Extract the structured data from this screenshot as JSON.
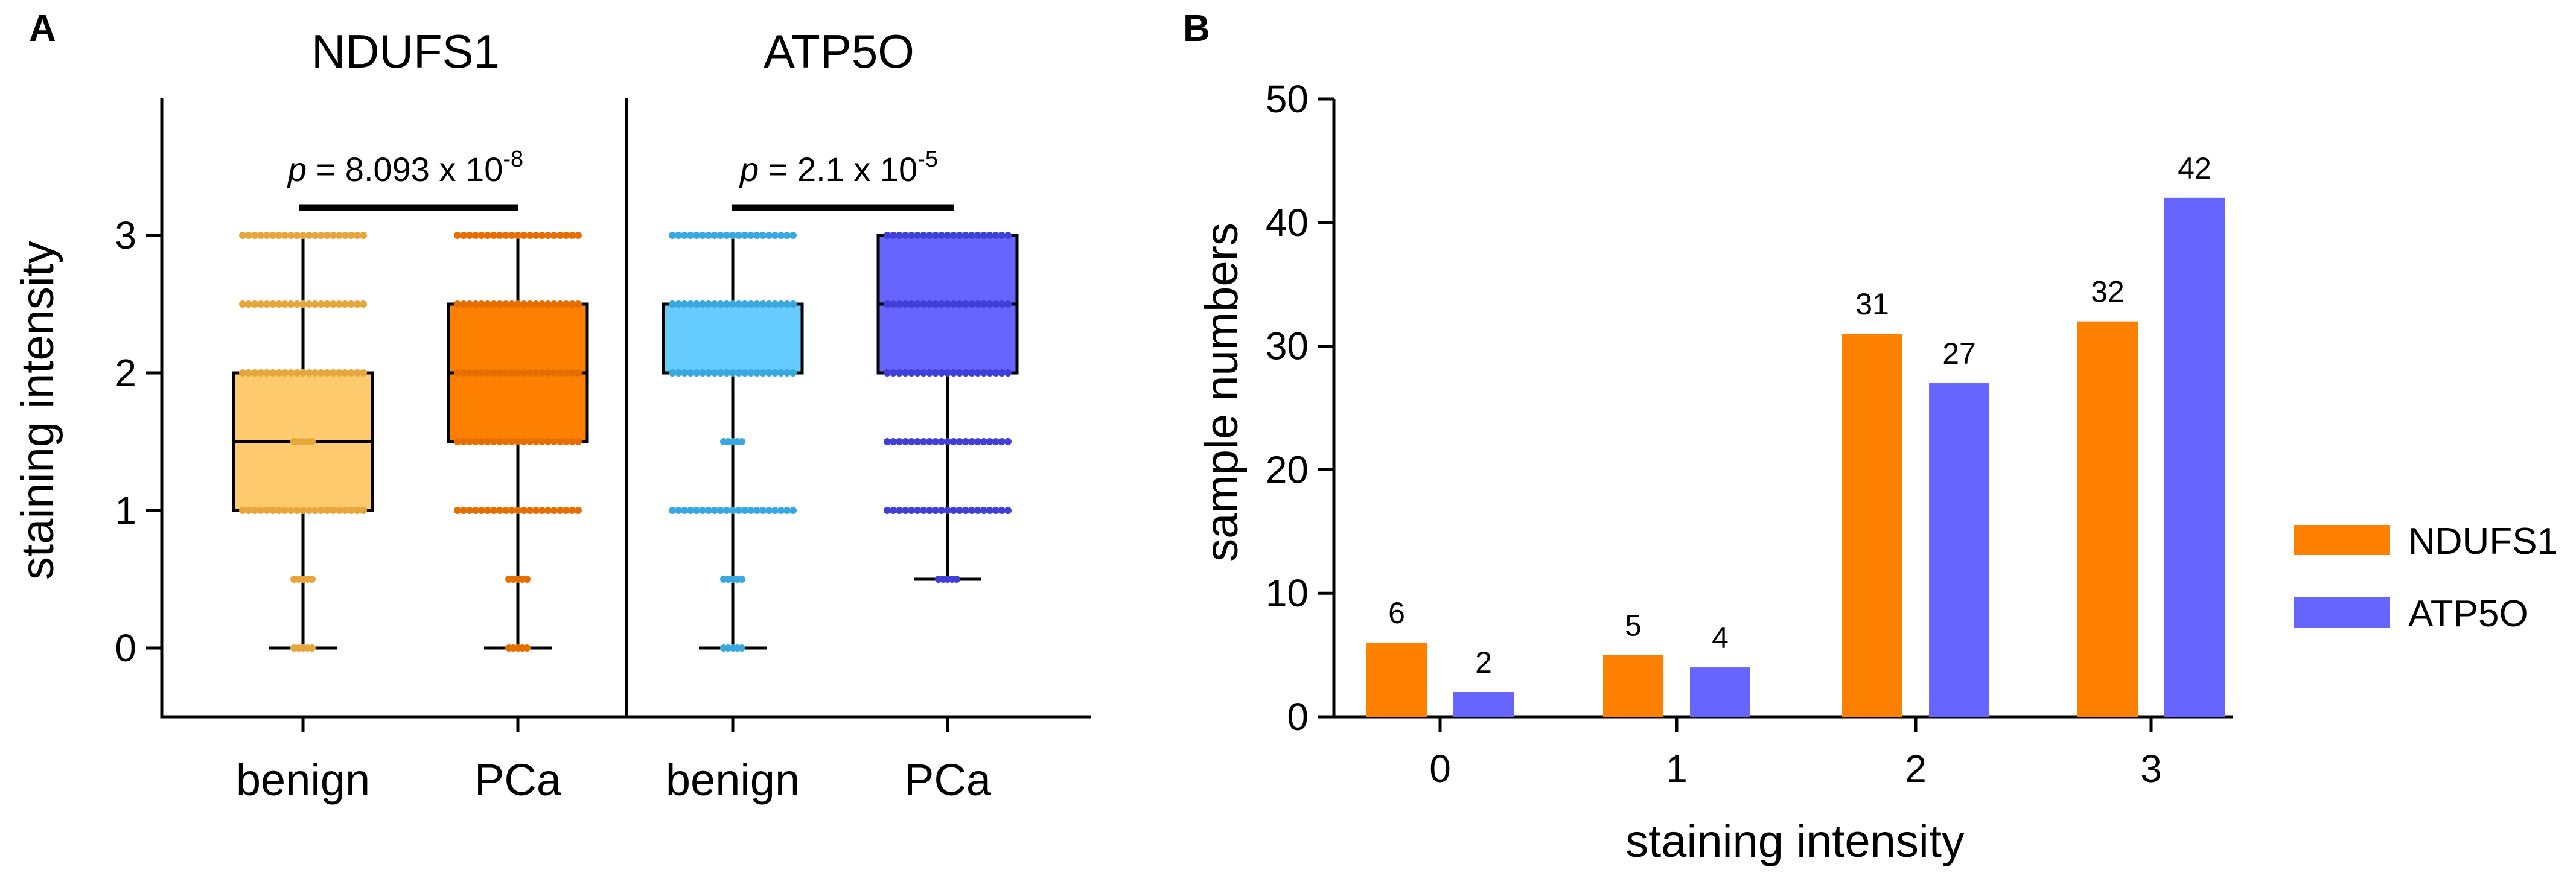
{
  "chart_data": [
    {
      "panel": "A",
      "type": "box",
      "ylabel": "staining intensity",
      "ylim": [
        -0.5,
        4
      ],
      "yticks": [
        0,
        1,
        2,
        3
      ],
      "groups": [
        {
          "title": "NDUFS1",
          "pvalue_prefix": "p",
          "pvalue_text": " = 8.093 x 10",
          "pvalue_exp": "-8",
          "boxes": [
            {
              "category": "benign",
              "color": "#fdcb6e",
              "dot_color": "#e7a63c",
              "min": 0,
              "q1": 1,
              "median": 1.5,
              "q3": 2,
              "max": 3,
              "dot_levels": [
                0,
                0.5,
                1,
                1.5,
                2,
                2.5,
                3
              ]
            },
            {
              "category": "PCa",
              "color": "#fe8000",
              "dot_color": "#e46f00",
              "min": 0,
              "q1": 1.5,
              "median": 2,
              "q3": 2.5,
              "max": 3,
              "dot_levels": [
                0,
                0.5,
                1,
                1.5,
                2,
                2.5,
                3
              ]
            }
          ]
        },
        {
          "title": "ATP5O",
          "pvalue_prefix": "p",
          "pvalue_text": " = 2.1 x 10",
          "pvalue_exp": "-5",
          "boxes": [
            {
              "category": "benign",
              "color": "#66ccff",
              "dot_color": "#3aa8e0",
              "min": 0,
              "q1": 2,
              "median": 2,
              "q3": 2.5,
              "max": 3,
              "dot_levels": [
                0,
                0.5,
                1,
                1.5,
                2,
                2.5,
                3
              ]
            },
            {
              "category": "PCa",
              "color": "#6666ff",
              "dot_color": "#4040d8",
              "min": 0.5,
              "q1": 2,
              "median": 2.5,
              "q3": 3,
              "max": 3,
              "dot_levels": [
                0.5,
                1,
                1.5,
                2,
                2.5,
                3
              ]
            }
          ]
        }
      ]
    },
    {
      "panel": "B",
      "type": "bar",
      "xlabel": "staining intensity",
      "ylabel": "sample numbers",
      "ylim": [
        0,
        50
      ],
      "yticks": [
        0,
        10,
        20,
        30,
        40,
        50
      ],
      "categories": [
        "0",
        "1",
        "2",
        "3"
      ],
      "series": [
        {
          "name": "NDUFS1",
          "color": "#fe8000",
          "values": [
            6,
            5,
            31,
            32
          ]
        },
        {
          "name": "ATP5O",
          "color": "#6666ff",
          "values": [
            2,
            4,
            27,
            42
          ]
        }
      ]
    }
  ]
}
